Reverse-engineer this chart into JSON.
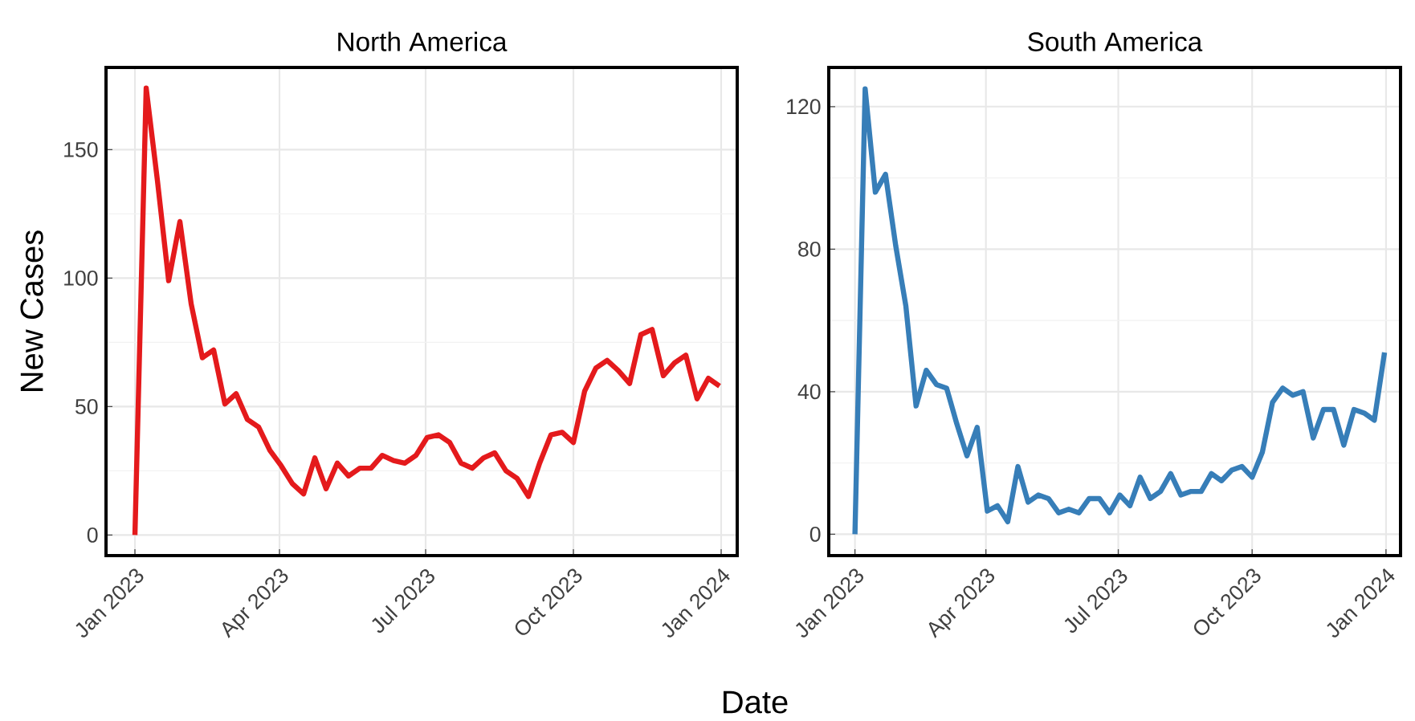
{
  "chart_data": [
    {
      "type": "line",
      "title": "North America",
      "xlabel": "Date",
      "ylabel": "New Cases",
      "x": [
        "2023-01-01",
        "2023-01-08",
        "2023-01-15",
        "2023-01-22",
        "2023-01-29",
        "2023-02-05",
        "2023-02-12",
        "2023-02-19",
        "2023-02-26",
        "2023-03-05",
        "2023-03-12",
        "2023-03-19",
        "2023-03-26",
        "2023-04-02",
        "2023-04-09",
        "2023-04-16",
        "2023-04-23",
        "2023-04-30",
        "2023-05-07",
        "2023-05-14",
        "2023-05-21",
        "2023-05-28",
        "2023-06-04",
        "2023-06-11",
        "2023-06-18",
        "2023-06-25",
        "2023-07-02",
        "2023-07-09",
        "2023-07-16",
        "2023-07-23",
        "2023-07-30",
        "2023-08-06",
        "2023-08-13",
        "2023-08-20",
        "2023-08-27",
        "2023-09-03",
        "2023-09-10",
        "2023-09-17",
        "2023-09-24",
        "2023-10-01",
        "2023-10-08",
        "2023-10-15",
        "2023-10-22",
        "2023-10-29",
        "2023-11-05",
        "2023-11-12",
        "2023-11-19",
        "2023-11-26",
        "2023-12-03",
        "2023-12-10",
        "2023-12-17",
        "2023-12-24",
        "2023-12-31"
      ],
      "series": [
        {
          "color": "#e41a1c",
          "values": [
            0,
            174,
            138,
            99,
            122,
            90,
            69,
            72,
            51,
            55,
            45,
            42,
            33,
            27,
            20,
            16,
            30,
            18,
            28,
            23,
            26,
            26,
            31,
            29,
            28,
            31,
            38,
            39,
            36,
            28,
            26,
            30,
            32,
            25,
            22,
            15,
            28,
            39,
            40,
            36,
            56,
            65,
            68,
            64,
            59,
            78,
            80,
            62,
            67,
            70,
            53,
            61,
            58
          ]
        }
      ],
      "xlim": [
        "2022-12-14",
        "2024-01-11"
      ],
      "ylim": [
        -8,
        182
      ],
      "xticks": [
        {
          "value": "2023-01-01",
          "label": "Jan 2023"
        },
        {
          "value": "2023-04-01",
          "label": "Apr 2023"
        },
        {
          "value": "2023-07-01",
          "label": "Jul 2023"
        },
        {
          "value": "2023-10-01",
          "label": "Oct 2023"
        },
        {
          "value": "2024-01-01",
          "label": "Jan 2024"
        }
      ],
      "yticks": [
        0,
        50,
        100,
        150
      ],
      "grid": true,
      "marker": "none",
      "line_style": "solid"
    },
    {
      "type": "line",
      "title": "South America",
      "x": [
        "2023-01-01",
        "2023-01-08",
        "2023-01-15",
        "2023-01-22",
        "2023-01-29",
        "2023-02-05",
        "2023-02-12",
        "2023-02-19",
        "2023-02-26",
        "2023-03-05",
        "2023-03-12",
        "2023-03-19",
        "2023-03-26",
        "2023-04-02",
        "2023-04-09",
        "2023-04-16",
        "2023-04-23",
        "2023-04-30",
        "2023-05-07",
        "2023-05-14",
        "2023-05-21",
        "2023-05-28",
        "2023-06-04",
        "2023-06-11",
        "2023-06-18",
        "2023-06-25",
        "2023-07-02",
        "2023-07-09",
        "2023-07-16",
        "2023-07-23",
        "2023-07-30",
        "2023-08-06",
        "2023-08-13",
        "2023-08-20",
        "2023-08-27",
        "2023-09-03",
        "2023-09-10",
        "2023-09-17",
        "2023-09-24",
        "2023-10-01",
        "2023-10-08",
        "2023-10-15",
        "2023-10-22",
        "2023-10-29",
        "2023-11-05",
        "2023-11-12",
        "2023-11-19",
        "2023-11-26",
        "2023-12-03",
        "2023-12-10",
        "2023-12-17",
        "2023-12-24",
        "2023-12-31"
      ],
      "series": [
        {
          "color": "#377eb8",
          "values": [
            0,
            125,
            96,
            101,
            81,
            64,
            36,
            46,
            42,
            41,
            31,
            22,
            30,
            6.5,
            8,
            3.5,
            19,
            9,
            11,
            10,
            6,
            7,
            6,
            10,
            10,
            6,
            11,
            8,
            16,
            10,
            12,
            17,
            11,
            12,
            12,
            17,
            15,
            18,
            19,
            16,
            23,
            37,
            41,
            39,
            40,
            27,
            35,
            35,
            25,
            35,
            34,
            32,
            51
          ]
        }
      ],
      "xlim": [
        "2022-12-14",
        "2024-01-11"
      ],
      "ylim": [
        -6,
        131
      ],
      "xticks": [
        {
          "value": "2023-01-01",
          "label": "Jan 2023"
        },
        {
          "value": "2023-04-01",
          "label": "Apr 2023"
        },
        {
          "value": "2023-07-01",
          "label": "Jul 2023"
        },
        {
          "value": "2023-10-01",
          "label": "Oct 2023"
        },
        {
          "value": "2024-01-01",
          "label": "Jan 2024"
        }
      ],
      "yticks": [
        0,
        40,
        80,
        120
      ],
      "grid": true,
      "marker": "none",
      "line_style": "solid"
    }
  ]
}
